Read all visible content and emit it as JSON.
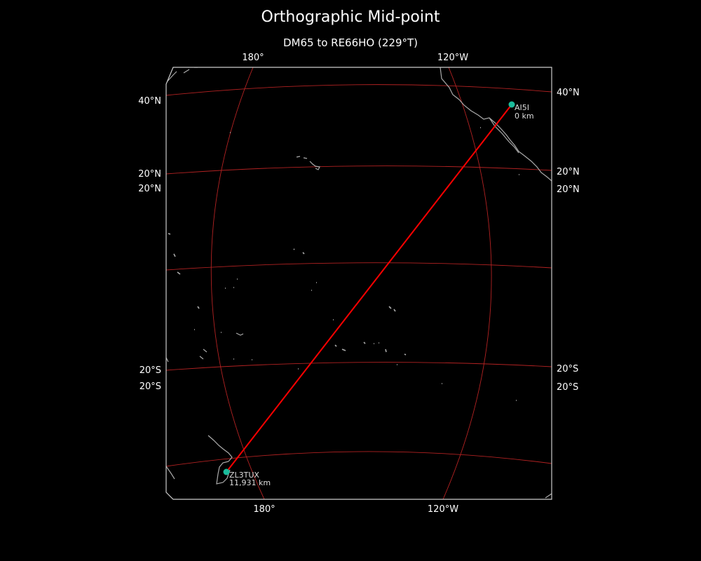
{
  "title": "Orthographic Mid-point",
  "subtitle": "DM65 to RE66HO (229°T)",
  "ticks": {
    "top": [
      "180°",
      "120°W"
    ],
    "bottom": [
      "180°",
      "120°W"
    ],
    "left": [
      "40°N",
      "20°N",
      "20°N",
      "20°S",
      "20°S"
    ],
    "right": [
      "40°N",
      "20°N",
      "20°N",
      "20°S",
      "20°S"
    ]
  },
  "stations": {
    "start": {
      "call": "AI5I",
      "distance": "0 km"
    },
    "end": {
      "call": "ZL3TUX",
      "distance": "11,931 km"
    }
  },
  "colors": {
    "background": "#000000",
    "graticule": "#b22222",
    "path": "#ff0000",
    "marker": "#1abc9c",
    "coast": "#aaaaaa",
    "frame": "#cccccc"
  }
}
